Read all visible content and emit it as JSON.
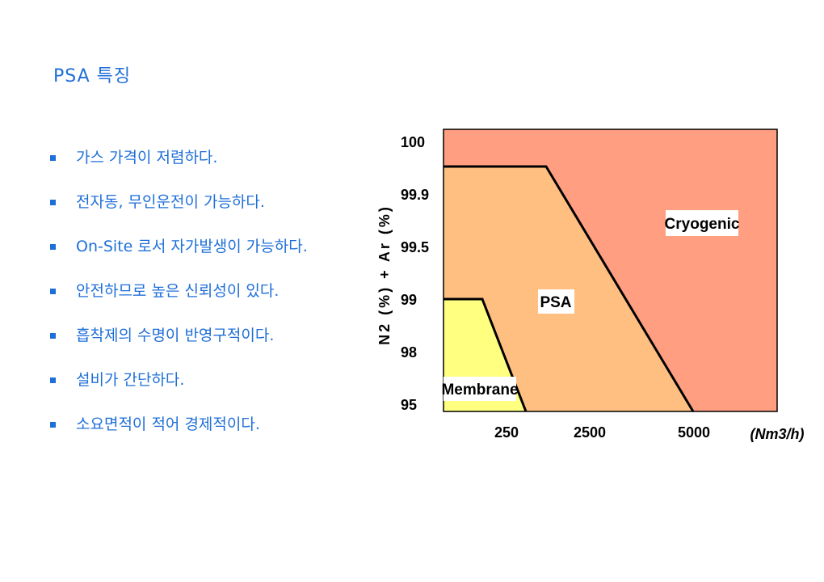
{
  "page": {
    "title": "PSA  특징"
  },
  "bullets": [
    "가스 가격이 저렴하다.",
    "전자동, 무인운전이 가능하다.",
    "On-Site  로서 자가발생이 가능하다.",
    "안전하므로 높은 신뢰성이 있다.",
    "흡착제의 수명이 반영구적이다.",
    "설비가 간단하다.",
    "소요면적이 적어 경제적이다."
  ],
  "colors": {
    "text_blue": "#1f6fd8",
    "cryogenic": "#ff9e80",
    "psa": "#ffbf80",
    "membrane": "#ffff80"
  },
  "chart_data": {
    "type": "area",
    "ylabel": "N2 (%) + Ar (%)",
    "xlabel": "(Nm3/h)",
    "y_ticks": [
      "100",
      "99.9",
      "99.5",
      "99",
      "98",
      "95"
    ],
    "x_ticks": [
      "250",
      "2500",
      "5000"
    ],
    "regions": [
      {
        "name": "Cryogenic",
        "color": "#ff9e80",
        "boundary": []
      },
      {
        "name": "PSA",
        "color": "#ffbf80",
        "boundary": [
          [
            "0",
            "99.95"
          ],
          [
            "2500",
            "99.95"
          ],
          [
            "5000",
            "95"
          ]
        ]
      },
      {
        "name": "Membrane",
        "color": "#ffff80",
        "boundary": [
          [
            "0",
            "99"
          ],
          [
            "250",
            "99"
          ],
          [
            "250+",
            "95"
          ]
        ]
      }
    ]
  }
}
